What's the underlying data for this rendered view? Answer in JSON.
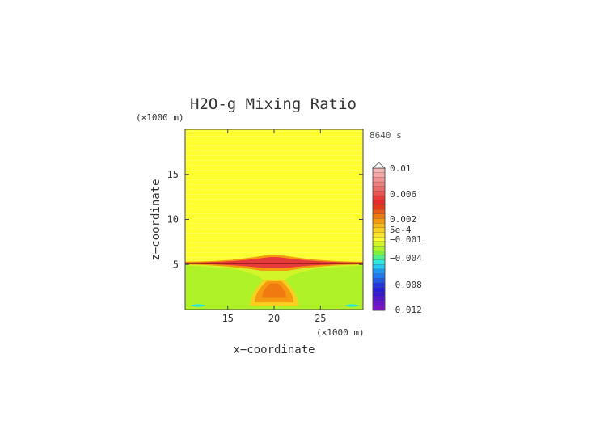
{
  "chart_data": {
    "type": "heatmap",
    "title": "H2O-g Mixing Ratio",
    "time_label": "8640 s",
    "xlabel": "x−coordinate",
    "ylabel": "z−coordinate",
    "x_unit": "(×1000 m)",
    "y_unit": "(×1000 m)",
    "xlim": [
      10.4,
      29.6
    ],
    "ylim": [
      0,
      20
    ],
    "x_ticks": [
      15,
      20,
      25
    ],
    "y_ticks": [
      5,
      10,
      15
    ],
    "x_tick_labels": [
      "15",
      "20",
      "25"
    ],
    "y_tick_labels": [
      "5",
      "10",
      "15"
    ],
    "field_regions": [
      {
        "name": "upper-layer",
        "value": 0.0009,
        "z_range": [
          5.2,
          20
        ]
      },
      {
        "name": "lower-layer",
        "value": -0.0008,
        "z_range": [
          0,
          5
        ]
      },
      {
        "name": "inversion-band",
        "value": 0.004,
        "z_range": [
          4.9,
          5.2
        ]
      },
      {
        "name": "central-plume-core",
        "value": 0.002,
        "x_center": 20,
        "z_range": [
          0.8,
          3.3
        ]
      }
    ],
    "colorbar": {
      "label_values": [
        "0.01",
        "0.006",
        "0.002",
        "5e-4",
        "−0.001",
        "−0.004",
        "−0.008",
        "−0.012"
      ],
      "levels_top_to_bottom": [
        {
          "color": "#f6b6b6"
        },
        {
          "color": "#f5a6a6"
        },
        {
          "color": "#f29494"
        },
        {
          "color": "#ef7f7f"
        },
        {
          "color": "#ea6a6a"
        },
        {
          "color": "#e85454"
        },
        {
          "color": "#e63b3b"
        },
        {
          "color": "#e42a2a"
        },
        {
          "color": "#e43a1a"
        },
        {
          "color": "#ea5a14"
        },
        {
          "color": "#f07a10"
        },
        {
          "color": "#f59a10"
        },
        {
          "color": "#f8b818"
        },
        {
          "color": "#fad020"
        },
        {
          "color": "#fbe62a"
        },
        {
          "color": "#ffff30"
        },
        {
          "color": "#d2f52a"
        },
        {
          "color": "#b0f228"
        },
        {
          "color": "#7cf03c"
        },
        {
          "color": "#4ef08a"
        },
        {
          "color": "#2ee8d8"
        },
        {
          "color": "#24c8f2"
        },
        {
          "color": "#1e98f0"
        },
        {
          "color": "#2078ee"
        },
        {
          "color": "#2158e8"
        },
        {
          "color": "#2238de"
        },
        {
          "color": "#2820d6"
        },
        {
          "color": "#3a18d0"
        },
        {
          "color": "#5418ca"
        },
        {
          "color": "#6a18c6"
        },
        {
          "color": "#7c16c2"
        }
      ]
    }
  }
}
